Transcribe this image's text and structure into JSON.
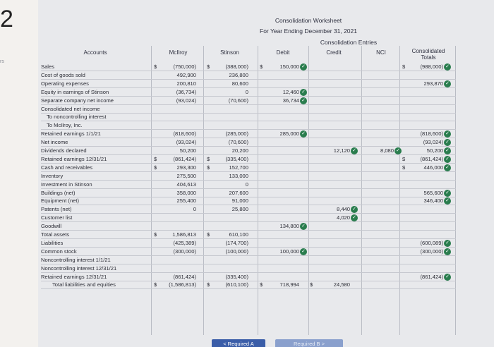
{
  "question_number": "2",
  "edge_mark": "rs",
  "title": "Consolidation Worksheet",
  "subtitle": "For Year Ending December 31, 2021",
  "entries_header": "Consolidation Entries",
  "columns": {
    "accounts": "Accounts",
    "mcilroy": "McIlroy",
    "stinson": "Stinson",
    "debit": "Debit",
    "credit": "Credit",
    "nci": "NCI",
    "consolidated_line1": "Consolidated",
    "consolidated_line2": "Totals"
  },
  "rows": [
    {
      "label": "Sales",
      "mcilroy": "(750,000)",
      "mcilroy_dollar": "$",
      "stinson": "(388,000)",
      "stinson_dollar": "$",
      "debit": "150,000",
      "debit_dollar": "$",
      "debit_chk": true,
      "consol": "(988,000)",
      "consol_dollar": "$",
      "consol_chk": true
    },
    {
      "label": "Cost of goods sold",
      "mcilroy": "492,900",
      "stinson": "236,800"
    },
    {
      "label": "Operating expenses",
      "mcilroy": "200,810",
      "stinson": "80,600",
      "consol": "293,870",
      "consol_chk": true
    },
    {
      "label": "Equity in earnings of Stinson",
      "mcilroy": "(36,734)",
      "stinson": "0",
      "debit": "12,460",
      "debit_chk": true
    },
    {
      "label": "Separate company net income",
      "mcilroy": "(93,024)",
      "stinson": "(70,600)",
      "debit": "36,734",
      "debit_chk": true
    },
    {
      "label": "Consolidated net income"
    },
    {
      "label": "To noncontrolling interest",
      "indent": 1
    },
    {
      "label": "To McIlroy, Inc.",
      "indent": 1
    },
    {
      "label": "Retained earnings 1/1/21",
      "mcilroy": "(818,600)",
      "stinson": "(285,000)",
      "debit": "285,000",
      "debit_chk": true,
      "consol": "(818,600)",
      "consol_chk": true
    },
    {
      "label": "Net income",
      "mcilroy": "(93,024)",
      "stinson": "(70,600)",
      "consol": "(93,024)",
      "consol_chk": true
    },
    {
      "label": "Dividends declared",
      "mcilroy": "50,200",
      "stinson": "20,200",
      "credit": "12,120",
      "credit_chk": true,
      "nci": "8,080",
      "nci_chk": true,
      "consol": "50,200",
      "consol_chk": true
    },
    {
      "label": "Retained earnings 12/31/21",
      "mcilroy": "(861,424)",
      "mcilroy_dollar": "$",
      "stinson": "(335,400)",
      "stinson_dollar": "$",
      "consol": "(861,424)",
      "consol_dollar": "$",
      "consol_chk": true
    },
    {
      "label": "Cash and receivables",
      "mcilroy": "293,300",
      "mcilroy_dollar": "$",
      "stinson": "152,700",
      "stinson_dollar": "$",
      "consol": "446,000",
      "consol_dollar": "$",
      "consol_chk": true
    },
    {
      "label": "Inventory",
      "mcilroy": "275,500",
      "stinson": "133,000"
    },
    {
      "label": "Investment in Stinson",
      "mcilroy": "404,613",
      "stinson": "0"
    },
    {
      "label": "Buildings (net)",
      "mcilroy": "358,000",
      "stinson": "207,600",
      "consol": "565,600",
      "consol_chk": true
    },
    {
      "label": "Equipment (net)",
      "mcilroy": "255,400",
      "stinson": "91,000",
      "consol": "346,400",
      "consol_chk": true
    },
    {
      "label": "Patents (net)",
      "mcilroy": "0",
      "stinson": "25,800",
      "credit": "8,440",
      "credit_chk": true
    },
    {
      "label": "Customer list",
      "credit": "4,020",
      "credit_chk": true
    },
    {
      "label": "Goodwill",
      "debit": "134,800",
      "debit_chk": true
    },
    {
      "label": "Total assets",
      "mcilroy": "1,586,813",
      "mcilroy_dollar": "$",
      "stinson": "610,100",
      "stinson_dollar": "$"
    },
    {
      "label": "Liabilities",
      "mcilroy": "(425,389)",
      "stinson": "(174,700)",
      "consol": "(600,089)",
      "consol_chk": true
    },
    {
      "label": "Common stock",
      "mcilroy": "(300,000)",
      "stinson": "(100,000)",
      "debit": "100,000",
      "debit_chk": true,
      "consol": "(300,000)",
      "consol_chk": true
    },
    {
      "label": "Noncontrolling interest 1/1/21"
    },
    {
      "label": "Noncontrolling interest 12/31/21"
    },
    {
      "label": "Retained earnings 12/31/21",
      "mcilroy": "(861,424)",
      "stinson": "(335,400)",
      "consol": "(861,424)",
      "consol_chk": true
    },
    {
      "label": "Total liabilities and equities",
      "indent": 2,
      "mcilroy": "(1,586,813)",
      "mcilroy_dollar": "$",
      "stinson": "(610,100)",
      "stinson_dollar": "$",
      "debit": "718,994",
      "debit_dollar": "$",
      "credit": "24,580",
      "credit_dollar": "$"
    }
  ],
  "nav": {
    "prev_label": "< Required A",
    "next_label": "Required B >"
  },
  "check_icon": "check-circle-icon",
  "colors": {
    "check": "#2a7d4e",
    "sheet": "#e8e9ec",
    "prev_button": "#3a5da8"
  }
}
